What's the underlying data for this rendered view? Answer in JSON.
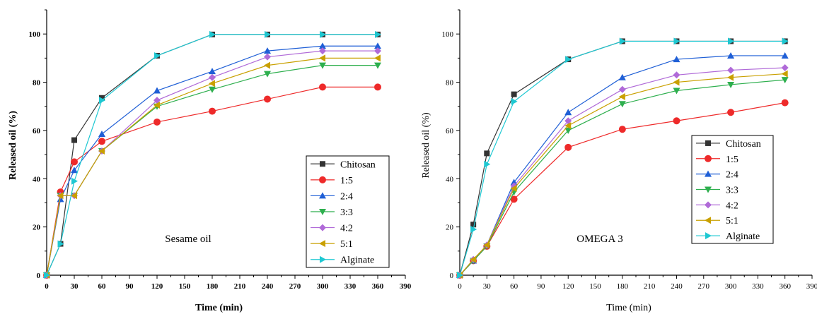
{
  "chart_data": [
    {
      "type": "line",
      "annotation": "Sesame oil",
      "xlabel": "Time (min)",
      "ylabel": "Released oil (%)",
      "label_weight": "bold",
      "xlim": [
        0,
        390
      ],
      "ylim": [
        0,
        110
      ],
      "xticks": [
        0,
        30,
        60,
        90,
        120,
        150,
        180,
        210,
        240,
        270,
        300,
        330,
        360,
        390
      ],
      "yticks": [
        0,
        20,
        40,
        60,
        80,
        100
      ],
      "grid": false,
      "legend_position": "bottom-right",
      "x": [
        0,
        15,
        30,
        60,
        120,
        180,
        240,
        300,
        360
      ],
      "series": [
        {
          "name": "Chitosan",
          "marker": "square",
          "color": "#333333",
          "values": [
            0,
            13,
            56,
            73.5,
            91,
            99.8,
            99.8,
            99.8,
            99.8
          ]
        },
        {
          "name": "1:5",
          "marker": "circle",
          "color": "#ee2a2a",
          "values": [
            0,
            34.5,
            47,
            55.5,
            63.5,
            68,
            73,
            78,
            78
          ]
        },
        {
          "name": "2:4",
          "marker": "triangle-up",
          "color": "#1f5fd6",
          "values": [
            0,
            31.5,
            43.5,
            58.5,
            76.5,
            84.5,
            93,
            95,
            95
          ]
        },
        {
          "name": "3:3",
          "marker": "triangle-down",
          "color": "#2eaf4e",
          "values": [
            0,
            33,
            33,
            51.5,
            70,
            77,
            83.5,
            87,
            87
          ]
        },
        {
          "name": "4:2",
          "marker": "diamond",
          "color": "#b06ad8",
          "values": [
            0,
            33,
            33,
            51.5,
            72.5,
            82,
            90.5,
            93,
            93
          ]
        },
        {
          "name": "5:1",
          "marker": "triangle-left",
          "color": "#c9a000",
          "values": [
            0,
            33,
            33,
            51.5,
            70.5,
            79.5,
            87,
            90,
            90
          ]
        },
        {
          "name": "Alginate",
          "marker": "triangle-right",
          "color": "#1ec8d2",
          "values": [
            0,
            13,
            39,
            72.5,
            91,
            99.8,
            99.8,
            99.8,
            99.8
          ]
        }
      ]
    },
    {
      "type": "line",
      "annotation": "OMEGA 3",
      "xlabel": "Time (min)",
      "ylabel": "Released oil (%)",
      "label_weight": "normal",
      "xlim": [
        0,
        390
      ],
      "ylim": [
        0,
        110
      ],
      "xticks": [
        0,
        30,
        60,
        90,
        120,
        150,
        180,
        210,
        240,
        270,
        300,
        330,
        360,
        390
      ],
      "yticks": [
        0,
        20,
        40,
        60,
        80,
        100
      ],
      "grid": false,
      "legend_position": "bottom-right",
      "x": [
        0,
        15,
        30,
        60,
        120,
        180,
        240,
        300,
        360
      ],
      "series": [
        {
          "name": "Chitosan",
          "marker": "square",
          "color": "#333333",
          "values": [
            0,
            21,
            50.5,
            75,
            89.5,
            97,
            97,
            97,
            97
          ]
        },
        {
          "name": "1:5",
          "marker": "circle",
          "color": "#ee2a2a",
          "values": [
            0,
            6,
            12,
            31.5,
            53,
            60.5,
            64,
            67.5,
            71.5
          ]
        },
        {
          "name": "2:4",
          "marker": "triangle-up",
          "color": "#1f5fd6",
          "values": [
            0,
            6,
            12.5,
            38.5,
            67.5,
            82,
            89.5,
            91,
            91
          ]
        },
        {
          "name": "3:3",
          "marker": "triangle-down",
          "color": "#2eaf4e",
          "values": [
            0,
            6,
            12,
            34.5,
            60,
            71,
            76.5,
            79,
            81
          ]
        },
        {
          "name": "4:2",
          "marker": "diamond",
          "color": "#b06ad8",
          "values": [
            0,
            6.5,
            12.5,
            37,
            64,
            77,
            83,
            85,
            86
          ]
        },
        {
          "name": "5:1",
          "marker": "triangle-left",
          "color": "#c9a000",
          "values": [
            0,
            6.5,
            12.5,
            36,
            62,
            74,
            80,
            82,
            83.5
          ]
        },
        {
          "name": "Alginate",
          "marker": "triangle-right",
          "color": "#1ec8d2",
          "values": [
            0,
            19,
            46,
            72,
            89.5,
            97,
            97,
            97,
            97
          ]
        }
      ]
    }
  ]
}
